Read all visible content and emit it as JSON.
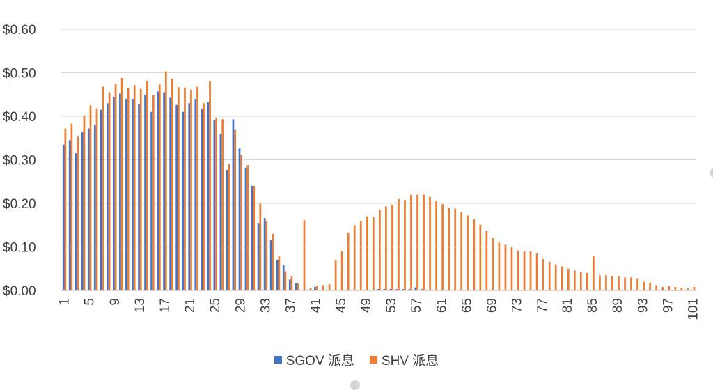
{
  "chart_data": {
    "type": "bar",
    "x": [
      1,
      2,
      3,
      4,
      5,
      6,
      7,
      8,
      9,
      10,
      11,
      12,
      13,
      14,
      15,
      16,
      17,
      18,
      19,
      20,
      21,
      22,
      23,
      24,
      25,
      26,
      27,
      28,
      29,
      30,
      31,
      32,
      33,
      34,
      35,
      36,
      37,
      38,
      39,
      40,
      41,
      42,
      43,
      44,
      45,
      46,
      47,
      48,
      49,
      50,
      51,
      52,
      53,
      54,
      55,
      56,
      57,
      58,
      59,
      60,
      61,
      62,
      63,
      64,
      65,
      66,
      67,
      68,
      69,
      70,
      71,
      72,
      73,
      74,
      75,
      76,
      77,
      78,
      79,
      80,
      81,
      82,
      83,
      84,
      85,
      86,
      87,
      88,
      89,
      90,
      91,
      92,
      93,
      94,
      95,
      96,
      97,
      98,
      99,
      100,
      101
    ],
    "xticks": [
      1,
      5,
      9,
      13,
      17,
      21,
      25,
      29,
      33,
      37,
      41,
      45,
      49,
      53,
      57,
      61,
      65,
      69,
      73,
      77,
      81,
      85,
      89,
      93,
      97,
      101
    ],
    "yticks": [
      "$0.00",
      "$0.10",
      "$0.20",
      "$0.30",
      "$0.40",
      "$0.50",
      "$0.60"
    ],
    "ylim": [
      0,
      0.6
    ],
    "grid": true,
    "legend_position": "bottom",
    "series": [
      {
        "name": "SGOV 派息",
        "color": "#4472C4",
        "values": [
          0.335,
          0.345,
          0.315,
          0.363,
          0.372,
          0.38,
          0.415,
          0.43,
          0.445,
          0.452,
          0.44,
          0.44,
          0.428,
          0.45,
          0.41,
          0.457,
          0.455,
          0.444,
          0.426,
          0.41,
          0.43,
          0.44,
          0.417,
          0.432,
          0.39,
          0.36,
          0.277,
          0.393,
          0.326,
          0.282,
          0.24,
          0.155,
          0.166,
          0.115,
          0.07,
          0.058,
          0.025,
          0.016,
          0,
          0,
          0.008,
          0,
          0,
          0,
          0,
          0,
          0,
          0,
          0,
          0,
          0.003,
          0.003,
          0.003,
          0.003,
          0.003,
          0.003,
          0.007,
          0.003,
          0,
          0,
          0,
          0,
          0,
          0,
          0,
          0,
          0,
          0,
          0,
          0,
          0,
          0,
          0,
          0,
          0,
          0,
          0,
          0,
          0,
          0,
          0,
          0,
          0,
          0,
          0,
          0,
          0,
          0,
          0,
          0,
          0,
          0,
          0,
          0,
          0,
          0,
          0,
          0,
          0,
          0,
          0
        ]
      },
      {
        "name": "SHV 派息",
        "color": "#ED7D31",
        "values": [
          0.372,
          0.383,
          0.355,
          0.402,
          0.425,
          0.418,
          0.468,
          0.455,
          0.475,
          0.488,
          0.465,
          0.472,
          0.463,
          0.48,
          0.448,
          0.473,
          0.503,
          0.486,
          0.467,
          0.466,
          0.461,
          0.468,
          0.43,
          0.481,
          0.397,
          0.393,
          0.29,
          0.37,
          0.312,
          0.288,
          0.24,
          0.2,
          0.16,
          0.13,
          0.078,
          0.044,
          0.032,
          0.016,
          0.161,
          0.005,
          0.01,
          0.012,
          0.014,
          0.07,
          0.09,
          0.133,
          0.15,
          0.16,
          0.17,
          0.168,
          0.185,
          0.193,
          0.197,
          0.21,
          0.208,
          0.22,
          0.22,
          0.22,
          0.215,
          0.206,
          0.198,
          0.19,
          0.188,
          0.18,
          0.172,
          0.164,
          0.151,
          0.136,
          0.12,
          0.11,
          0.105,
          0.1,
          0.092,
          0.09,
          0.09,
          0.085,
          0.072,
          0.066,
          0.06,
          0.055,
          0.05,
          0.046,
          0.042,
          0.04,
          0.078,
          0.035,
          0.035,
          0.033,
          0.032,
          0.03,
          0.03,
          0.028,
          0.02,
          0.018,
          0.012,
          0.008,
          0.01,
          0.008,
          0.006,
          0.005,
          0.008
        ]
      }
    ]
  }
}
